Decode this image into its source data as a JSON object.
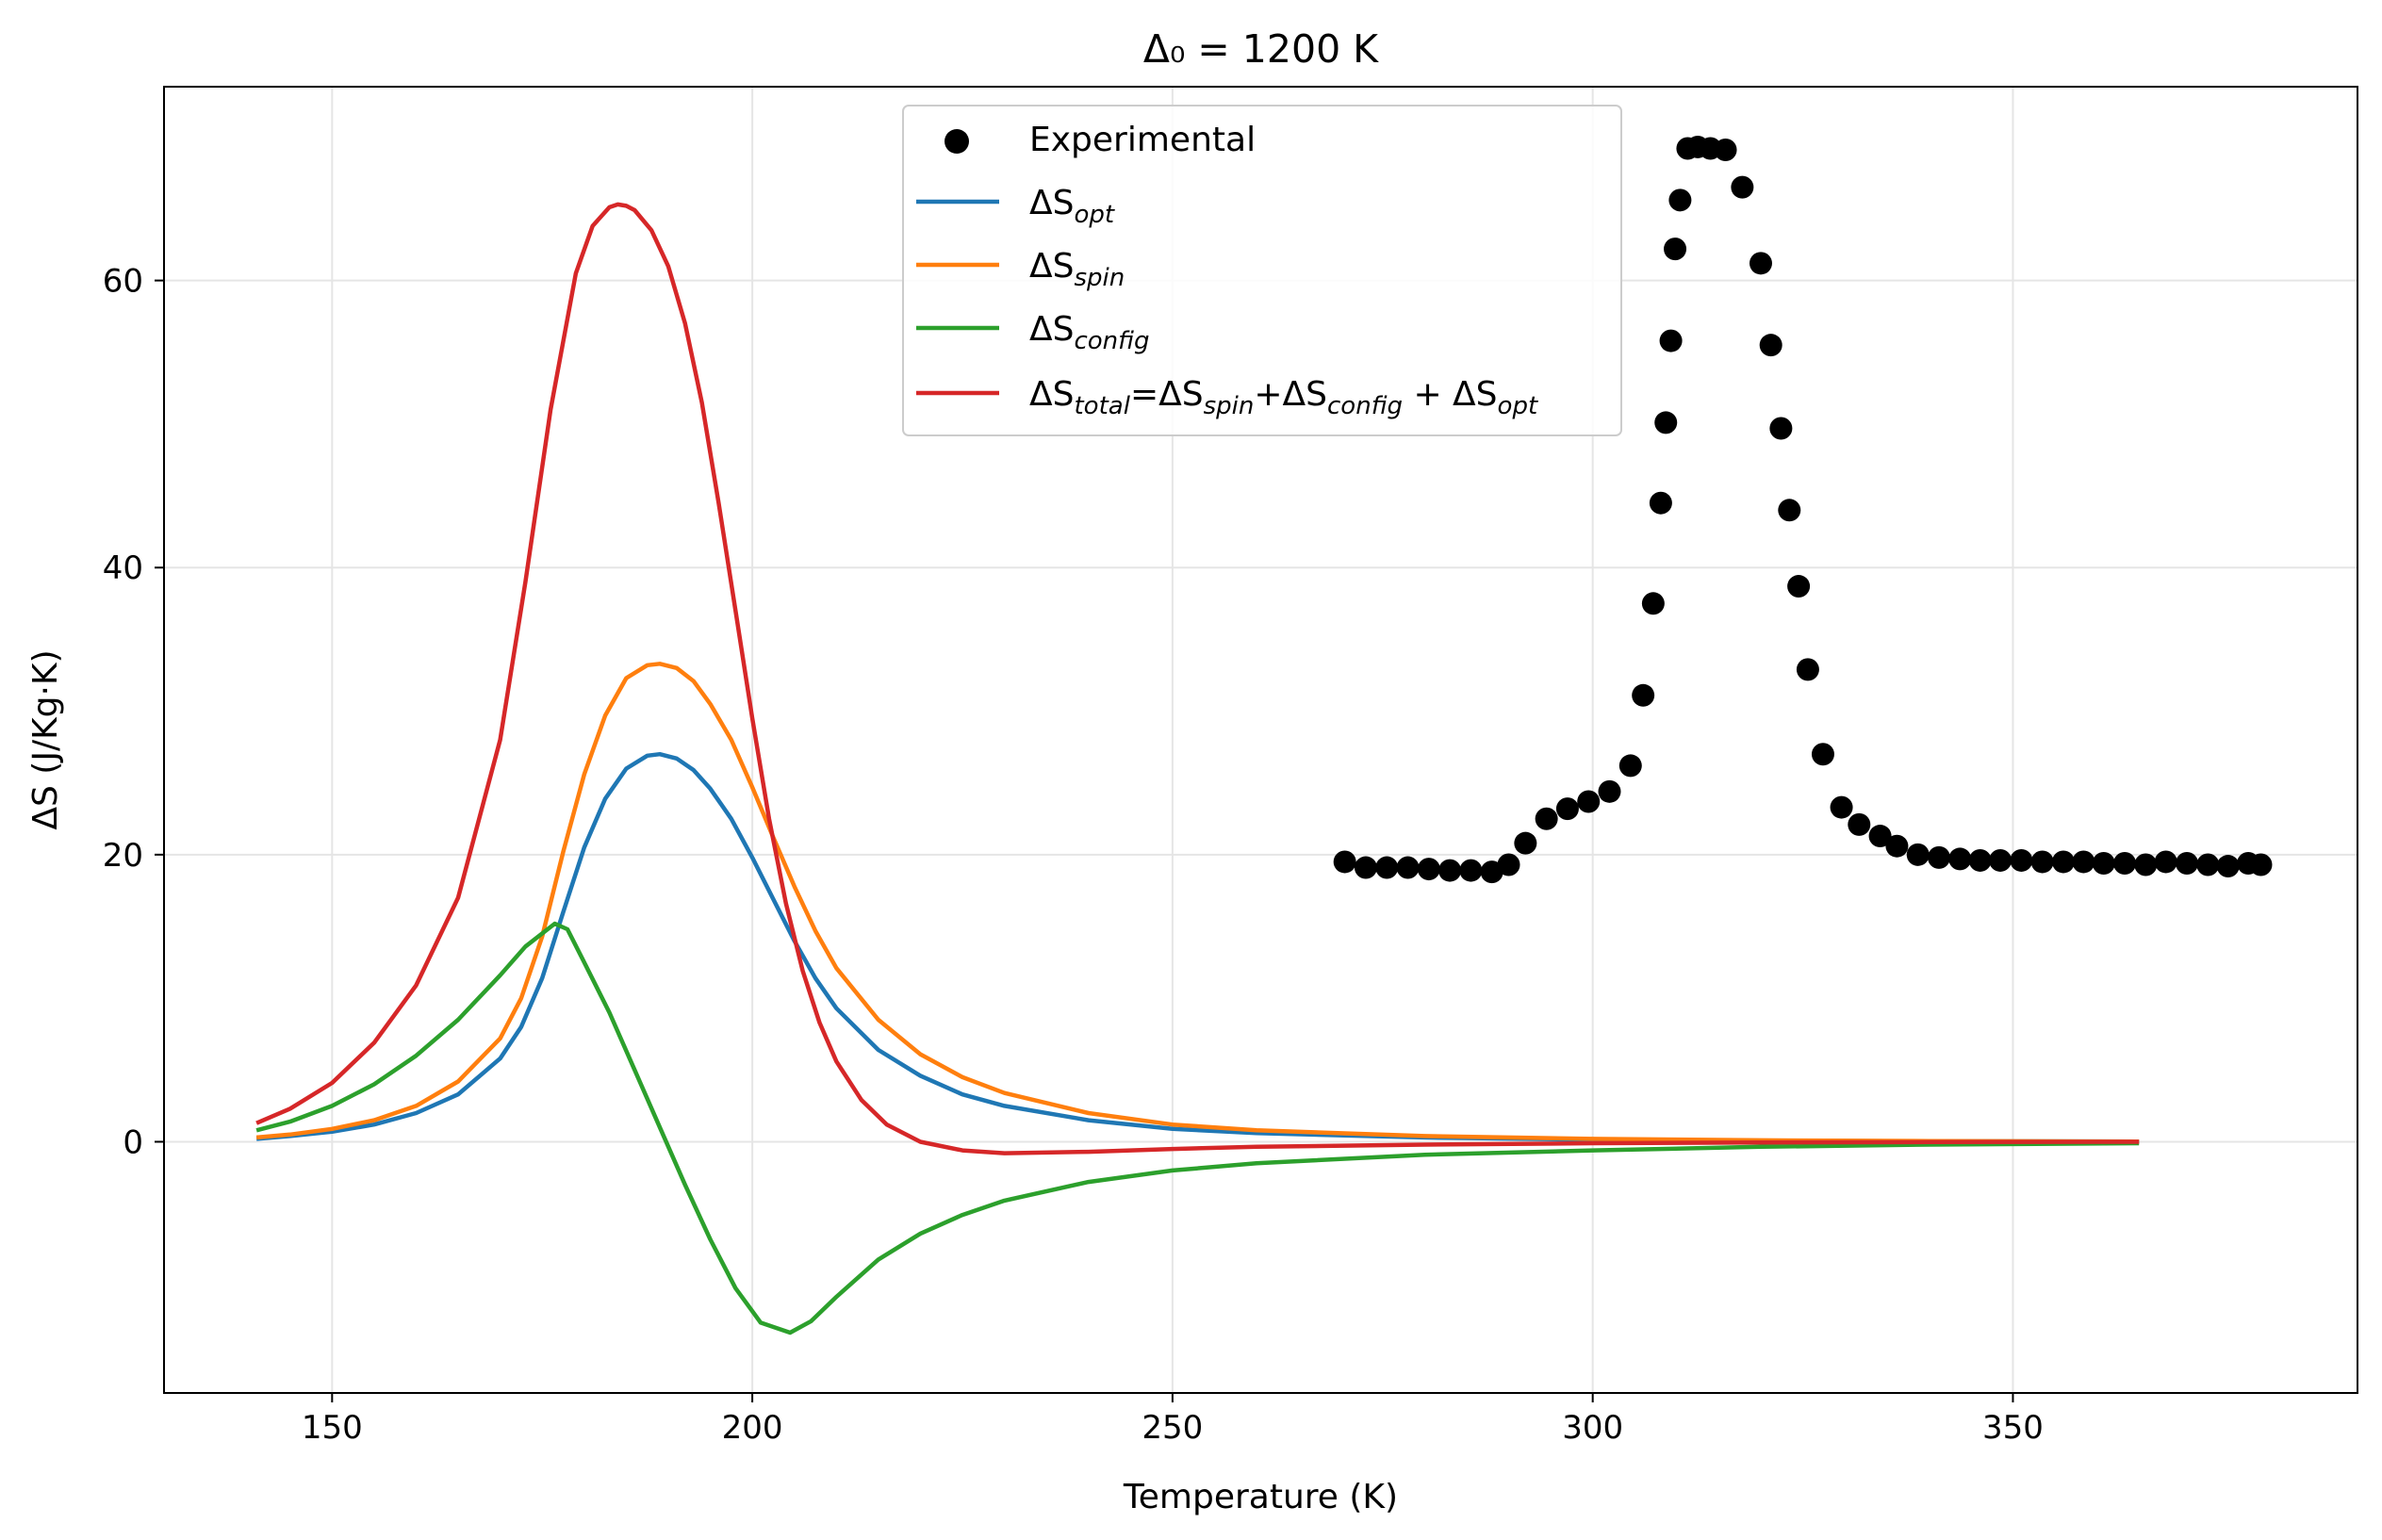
{
  "chart_data": {
    "type": "line",
    "title": "Δ₀ = 1200 K",
    "xlabel": "Temperature (K)",
    "ylabel": "ΔS (J/Kg·K)",
    "xlim": [
      130,
      391
    ],
    "ylim": [
      -17.5,
      73.5
    ],
    "xticks": [
      150,
      200,
      250,
      300,
      350
    ],
    "yticks": [
      0,
      20,
      40,
      60
    ],
    "grid": true,
    "legend": {
      "position": "upper-center",
      "entries": [
        {
          "key": "experimental",
          "label": "Experimental",
          "marker": "dot",
          "color": "#000000"
        },
        {
          "key": "opt",
          "label": "ΔS",
          "sub": "opt",
          "color": "#1f77b4"
        },
        {
          "key": "spin",
          "label": "ΔS",
          "sub": "spin",
          "color": "#ff7f0e"
        },
        {
          "key": "config",
          "label": "ΔS",
          "sub": "config",
          "color": "#2ca02c"
        },
        {
          "key": "total",
          "label": "ΔS",
          "sub": "total",
          "formula_parts": [
            "=ΔS",
            "spin",
            "+ΔS",
            "config",
            " + ΔS",
            "opt"
          ],
          "color": "#d62728"
        }
      ]
    },
    "series": [
      {
        "name": "ΔS_opt",
        "key": "opt",
        "color": "#1f77b4",
        "x": [
          141,
          145,
          150,
          155,
          160,
          165,
          170,
          172.5,
          175,
          177.5,
          180,
          182.5,
          185,
          187.5,
          189,
          191,
          193,
          195,
          197.5,
          200,
          202.5,
          205,
          207.5,
          210,
          215,
          220,
          225,
          230,
          240,
          250,
          260,
          280,
          300,
          320,
          340,
          365
        ],
        "y": [
          0.2,
          0.4,
          0.7,
          1.2,
          2.0,
          3.3,
          5.8,
          8.0,
          11.4,
          16.0,
          20.5,
          23.9,
          26.0,
          26.9,
          27.0,
          26.7,
          25.9,
          24.6,
          22.5,
          19.8,
          16.9,
          14.0,
          11.4,
          9.3,
          6.4,
          4.6,
          3.3,
          2.5,
          1.5,
          0.9,
          0.6,
          0.3,
          0.15,
          0.08,
          0.04,
          0.02
        ]
      },
      {
        "name": "ΔS_spin",
        "key": "spin",
        "color": "#ff7f0e",
        "x": [
          141,
          145,
          150,
          155,
          160,
          165,
          170,
          172.5,
          175,
          177.5,
          180,
          182.5,
          185,
          187.5,
          189,
          191,
          193,
          195,
          197.5,
          200,
          202.5,
          205,
          207.5,
          210,
          215,
          220,
          225,
          230,
          240,
          250,
          260,
          280,
          300,
          320,
          340,
          365
        ],
        "y": [
          0.3,
          0.5,
          0.9,
          1.5,
          2.5,
          4.2,
          7.2,
          10.0,
          14.3,
          20.2,
          25.6,
          29.7,
          32.3,
          33.2,
          33.3,
          33.0,
          32.1,
          30.5,
          28.0,
          24.7,
          21.2,
          17.8,
          14.7,
          12.1,
          8.5,
          6.1,
          4.5,
          3.4,
          2.0,
          1.2,
          0.8,
          0.4,
          0.2,
          0.1,
          0.05,
          0.02
        ]
      },
      {
        "name": "ΔS_config",
        "key": "config",
        "color": "#2ca02c",
        "x": [
          141,
          145,
          150,
          155,
          160,
          165,
          170,
          173,
          176.5,
          178,
          180,
          183,
          186,
          189,
          192,
          195,
          198,
          201,
          204.5,
          207,
          210,
          215,
          220,
          225,
          230,
          240,
          250,
          260,
          280,
          300,
          320,
          340,
          365
        ],
        "y": [
          0.8,
          1.4,
          2.5,
          4.0,
          6.0,
          8.5,
          11.6,
          13.6,
          15.2,
          14.8,
          12.5,
          9.0,
          5.0,
          1.0,
          -3.0,
          -6.8,
          -10.2,
          -12.6,
          -13.3,
          -12.5,
          -10.8,
          -8.2,
          -6.4,
          -5.1,
          -4.1,
          -2.8,
          -2.0,
          -1.5,
          -0.9,
          -0.6,
          -0.35,
          -0.2,
          -0.1
        ]
      },
      {
        "name": "ΔS_total",
        "key": "total",
        "color": "#d62728",
        "x": [
          141,
          145,
          150,
          155,
          160,
          165,
          170,
          173,
          176,
          179,
          181,
          183,
          184,
          185,
          186,
          188,
          190,
          192,
          194,
          196,
          198,
          200,
          202,
          204,
          206,
          208,
          210,
          213,
          216,
          220,
          225,
          230,
          240,
          250,
          260,
          280,
          300,
          320,
          340,
          365
        ],
        "y": [
          1.3,
          2.3,
          4.1,
          6.9,
          10.9,
          17.0,
          28.0,
          39.0,
          51.0,
          60.5,
          63.8,
          65.1,
          65.3,
          65.2,
          64.9,
          63.5,
          61.0,
          57.0,
          51.5,
          44.5,
          37.0,
          29.5,
          22.5,
          16.6,
          11.9,
          8.3,
          5.6,
          2.9,
          1.2,
          0.0,
          -0.6,
          -0.8,
          -0.7,
          -0.5,
          -0.35,
          -0.2,
          -0.1,
          -0.05,
          -0.02,
          0.0
        ]
      },
      {
        "name": "Experimental",
        "key": "experimental",
        "type": "scatter",
        "color": "#000000",
        "x": [
          270.5,
          273,
          275.5,
          278,
          280.5,
          283,
          285.5,
          288,
          290,
          292,
          294.5,
          297,
          299.5,
          302,
          304.5,
          306,
          307.2,
          308.1,
          308.7,
          309.3,
          309.8,
          310.4,
          311.3,
          312.5,
          314,
          315.8,
          317.8,
          320,
          321.2,
          322.4,
          323.4,
          324.5,
          325.6,
          327.4,
          329.6,
          331.7,
          334.2,
          336.2,
          338.7,
          341.2,
          343.7,
          346.1,
          348.5,
          351,
          353.5,
          356,
          358.4,
          360.8,
          363.3,
          365.8,
          368.2,
          370.7,
          373.2,
          375.6,
          378,
          379.5
        ],
        "y": [
          19.5,
          19.1,
          19.1,
          19.1,
          19.0,
          18.9,
          18.9,
          18.8,
          19.3,
          20.8,
          22.5,
          23.2,
          23.7,
          24.4,
          26.2,
          31.1,
          37.5,
          44.5,
          50.1,
          55.8,
          62.2,
          65.6,
          69.2,
          69.3,
          69.2,
          69.1,
          66.5,
          61.2,
          55.5,
          49.7,
          44.0,
          38.7,
          32.9,
          27.0,
          23.3,
          22.1,
          21.3,
          20.6,
          20.0,
          19.8,
          19.7,
          19.6,
          19.6,
          19.6,
          19.5,
          19.5,
          19.5,
          19.4,
          19.4,
          19.3,
          19.5,
          19.4,
          19.3,
          19.2,
          19.4,
          19.3
        ]
      }
    ]
  }
}
